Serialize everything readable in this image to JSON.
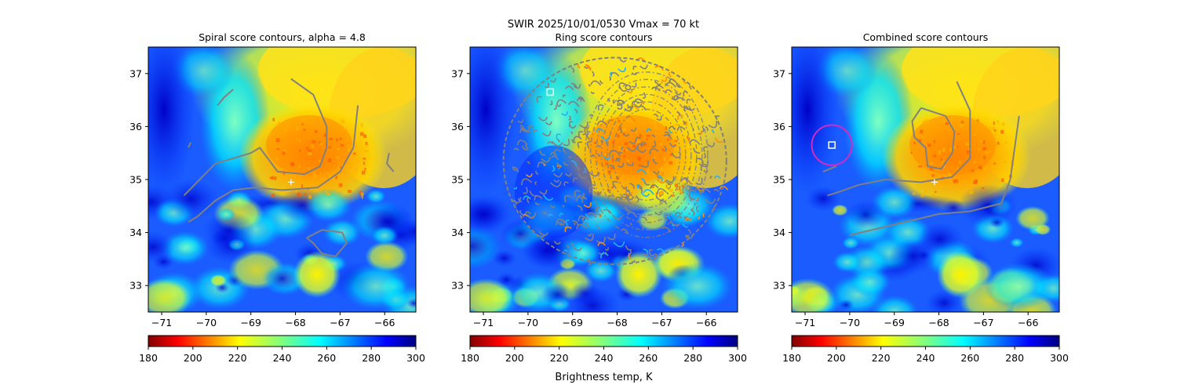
{
  "figure": {
    "suptitle_line1": "SWIR  2025/10/01/0530    Vmax = 70 kt",
    "colorbar_label": "Brightness temp, K"
  },
  "colors": {
    "contour": "#808080",
    "center_marker": "#ffffff",
    "best_marker_circle": "#d12bc4",
    "best_marker_square": "#ffffff"
  },
  "chart_data": [
    {
      "type": "heatmap",
      "title": "Spiral score contours, alpha =  4.8",
      "xlim": [
        -71.3,
        -65.3
      ],
      "ylim": [
        32.5,
        37.5
      ],
      "xticks": [
        -71,
        -70,
        -69,
        -68,
        -67,
        -66
      ],
      "yticks": [
        33,
        34,
        35,
        36,
        37
      ],
      "colormap": "jet_r",
      "vmin": 180,
      "vmax": 300,
      "colorbar_ticks": [
        180,
        200,
        220,
        240,
        260,
        280,
        300
      ],
      "center_marker": {
        "x": -68.1,
        "y": 34.95,
        "symbol": "+"
      },
      "contours": [
        {
          "name": "spiral-arm-main",
          "points": [
            [
              -68.1,
              36.9
            ],
            [
              -67.6,
              36.6
            ],
            [
              -67.3,
              36.0
            ],
            [
              -67.3,
              35.6
            ],
            [
              -67.45,
              35.25
            ],
            [
              -67.8,
              35.1
            ],
            [
              -68.4,
              35.15
            ],
            [
              -68.8,
              35.6
            ],
            [
              -69.0,
              35.5
            ],
            [
              -69.8,
              35.3
            ],
            [
              -70.5,
              34.7
            ]
          ]
        },
        {
          "name": "outer-band",
          "points": [
            [
              -66.6,
              36.4
            ],
            [
              -66.7,
              35.6
            ],
            [
              -67.0,
              35.15
            ],
            [
              -67.5,
              34.85
            ],
            [
              -68.3,
              34.8
            ],
            [
              -68.9,
              34.85
            ],
            [
              -69.4,
              34.8
            ],
            [
              -69.8,
              34.6
            ],
            [
              -70.2,
              34.3
            ],
            [
              -70.4,
              34.2
            ]
          ]
        },
        {
          "name": "nw-fragment",
          "points": [
            [
              -69.75,
              36.4
            ],
            [
              -69.6,
              36.55
            ],
            [
              -69.4,
              36.7
            ]
          ]
        },
        {
          "name": "west-fragment",
          "points": [
            [
              -70.4,
              35.6
            ],
            [
              -70.35,
              35.7
            ]
          ]
        },
        {
          "name": "east-fragment",
          "points": [
            [
              -65.9,
              35.5
            ],
            [
              -65.95,
              35.3
            ],
            [
              -65.8,
              35.15
            ]
          ]
        },
        {
          "name": "south-loop",
          "points": [
            [
              -67.75,
              33.9
            ],
            [
              -67.4,
              34.05
            ],
            [
              -66.95,
              34.0
            ],
            [
              -66.85,
              33.8
            ],
            [
              -67.1,
              33.55
            ],
            [
              -67.4,
              33.6
            ],
            [
              -67.6,
              33.8
            ],
            [
              -67.75,
              33.9
            ]
          ]
        }
      ]
    },
    {
      "type": "heatmap",
      "title": "Ring score contours",
      "xlim": [
        -71.3,
        -65.3
      ],
      "ylim": [
        32.5,
        37.5
      ],
      "xticks": [
        -71,
        -70,
        -69,
        -68,
        -67,
        -66
      ],
      "yticks": [
        33,
        34,
        35,
        36,
        37
      ],
      "colormap": "jet_r",
      "vmin": 180,
      "vmax": 300,
      "colorbar_ticks": [
        180,
        200,
        220,
        240,
        260,
        280,
        300
      ],
      "best_marker": {
        "x": -69.5,
        "y": 36.65,
        "symbol": "square"
      },
      "ring_region": {
        "center_x": -68.05,
        "center_y": 35.35,
        "radius_x": 2.5,
        "radius_y": 1.95
      }
    },
    {
      "type": "heatmap",
      "title": "Combined score contours",
      "xlim": [
        -71.3,
        -65.3
      ],
      "ylim": [
        32.5,
        37.5
      ],
      "xticks": [
        -71,
        -70,
        -69,
        -68,
        -67,
        -66
      ],
      "yticks": [
        33,
        34,
        35,
        36,
        37
      ],
      "colormap": "jet_r",
      "vmin": 180,
      "vmax": 300,
      "colorbar_ticks": [
        180,
        200,
        220,
        240,
        260,
        280,
        300
      ],
      "center_marker": {
        "x": -68.1,
        "y": 34.95,
        "symbol": "+"
      },
      "best_marker": {
        "x": -70.4,
        "y": 35.65,
        "symbol": "square",
        "circle_radius": 0.45
      },
      "contours": [
        {
          "name": "inner-loop",
          "points": [
            [
              -68.4,
              36.35
            ],
            [
              -67.85,
              36.2
            ],
            [
              -67.65,
              35.9
            ],
            [
              -67.7,
              35.5
            ],
            [
              -67.95,
              35.2
            ],
            [
              -68.25,
              35.25
            ],
            [
              -68.3,
              35.6
            ],
            [
              -68.55,
              35.8
            ],
            [
              -68.6,
              36.1
            ],
            [
              -68.4,
              36.35
            ]
          ]
        },
        {
          "name": "spiral-arm",
          "points": [
            [
              -67.6,
              36.85
            ],
            [
              -67.3,
              36.3
            ],
            [
              -67.3,
              35.4
            ],
            [
              -67.7,
              35.05
            ],
            [
              -68.4,
              34.95
            ],
            [
              -69.2,
              35.0
            ],
            [
              -69.8,
              34.9
            ],
            [
              -70.3,
              34.75
            ],
            [
              -70.5,
              34.7
            ]
          ]
        },
        {
          "name": "outer-arc",
          "points": [
            [
              -66.2,
              36.2
            ],
            [
              -66.4,
              35.0
            ],
            [
              -66.6,
              34.55
            ],
            [
              -67.3,
              34.4
            ],
            [
              -68.0,
              34.35
            ],
            [
              -69.0,
              34.15
            ],
            [
              -70.0,
              33.95
            ]
          ]
        },
        {
          "name": "west-fragment",
          "points": [
            [
              -70.6,
              35.15
            ],
            [
              -70.3,
              35.25
            ]
          ]
        }
      ]
    }
  ]
}
